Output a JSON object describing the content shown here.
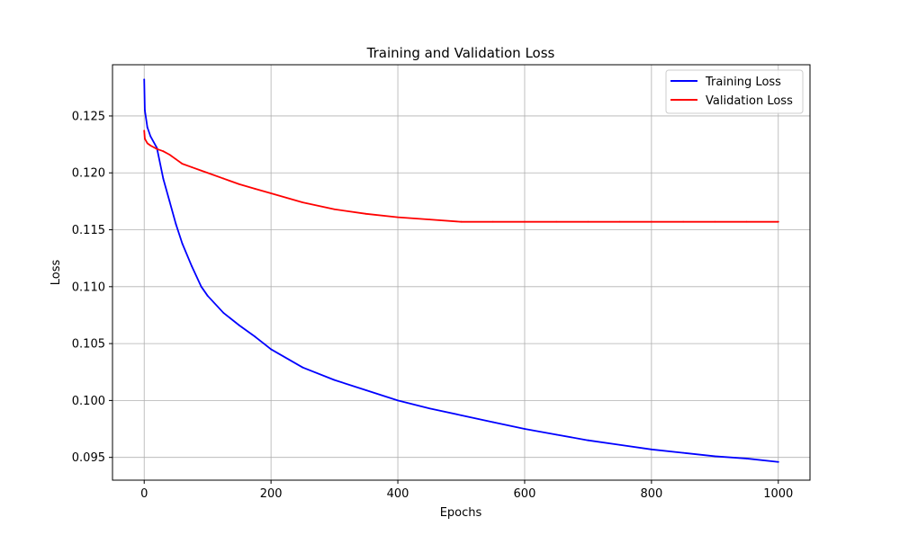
{
  "chart_data": {
    "type": "line",
    "title": "Training and Validation Loss",
    "xlabel": "Epochs",
    "ylabel": "Loss",
    "xlim": [
      -50,
      1050
    ],
    "ylim": [
      0.093,
      0.1295
    ],
    "grid": true,
    "legend_position": "top-right",
    "x_ticks": [
      0,
      200,
      400,
      600,
      800,
      1000
    ],
    "x_tick_labels": [
      "0",
      "200",
      "400",
      "600",
      "800",
      "1000"
    ],
    "y_ticks": [
      0.095,
      0.1,
      0.105,
      0.11,
      0.115,
      0.12,
      0.125
    ],
    "y_tick_labels": [
      "0.095",
      "0.100",
      "0.105",
      "0.110",
      "0.115",
      "0.120",
      "0.125"
    ],
    "x": [
      0,
      1,
      5,
      10,
      20,
      30,
      40,
      50,
      60,
      75,
      90,
      100,
      125,
      150,
      175,
      200,
      250,
      300,
      350,
      400,
      450,
      500,
      550,
      600,
      650,
      700,
      750,
      800,
      850,
      900,
      950,
      1000
    ],
    "series": [
      {
        "name": "Training Loss",
        "color": "#0000ff",
        "values": [
          0.1282,
          0.1255,
          0.124,
          0.1232,
          0.1222,
          0.1195,
          0.1175,
          0.1155,
          0.1138,
          0.1118,
          0.11,
          0.1092,
          0.1077,
          0.1066,
          0.1056,
          0.1045,
          0.1029,
          0.1018,
          0.1009,
          0.1,
          0.0993,
          0.0987,
          0.0981,
          0.0975,
          0.097,
          0.0965,
          0.0961,
          0.0957,
          0.0954,
          0.0951,
          0.0949,
          0.0946
        ]
      },
      {
        "name": "Validation Loss",
        "color": "#ff0000",
        "values": [
          0.1237,
          0.123,
          0.1226,
          0.1224,
          0.1221,
          0.1219,
          0.1216,
          0.1212,
          0.1208,
          0.1205,
          0.1202,
          0.12,
          0.1195,
          0.119,
          0.1186,
          0.1182,
          0.1174,
          0.1168,
          0.1164,
          0.1161,
          0.1159,
          0.1157,
          0.1157,
          0.1157,
          0.1157,
          0.1157,
          0.1157,
          0.1157,
          0.1157,
          0.1157,
          0.1157,
          0.1157
        ]
      }
    ]
  }
}
